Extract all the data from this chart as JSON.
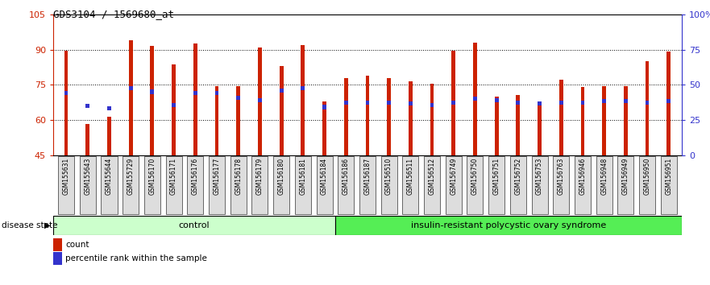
{
  "title": "GDS3104 / 1569680_at",
  "samples": [
    "GSM155631",
    "GSM155643",
    "GSM155644",
    "GSM155729",
    "GSM156170",
    "GSM156171",
    "GSM156176",
    "GSM156177",
    "GSM156178",
    "GSM156179",
    "GSM156180",
    "GSM156181",
    "GSM156184",
    "GSM156186",
    "GSM156187",
    "GSM156510",
    "GSM156511",
    "GSM156512",
    "GSM156749",
    "GSM156750",
    "GSM156751",
    "GSM156752",
    "GSM156753",
    "GSM156763",
    "GSM156946",
    "GSM156948",
    "GSM156949",
    "GSM156950",
    "GSM156951"
  ],
  "count_values": [
    89.5,
    58.5,
    61.5,
    94.0,
    91.5,
    83.5,
    92.5,
    74.5,
    74.5,
    91.0,
    83.0,
    92.0,
    68.0,
    78.0,
    79.0,
    78.0,
    76.5,
    75.5,
    89.5,
    93.0,
    70.0,
    70.5,
    67.0,
    77.0,
    74.0,
    74.5,
    74.5,
    85.0,
    89.0
  ],
  "percentile_values": [
    71.5,
    66.0,
    65.0,
    73.5,
    72.0,
    66.5,
    71.5,
    71.5,
    69.5,
    68.5,
    72.5,
    73.5,
    65.5,
    67.5,
    67.5,
    67.5,
    67.0,
    66.5,
    67.5,
    69.0,
    68.5,
    67.5,
    67.0,
    67.5,
    67.5,
    68.0,
    68.0,
    67.5,
    68.0
  ],
  "group_labels": [
    "control",
    "insulin-resistant polycystic ovary syndrome"
  ],
  "group_split": 13,
  "ylim": [
    45,
    105
  ],
  "yticks": [
    45,
    60,
    75,
    90,
    105
  ],
  "right_yticks": [
    0,
    25,
    50,
    75,
    100
  ],
  "right_ytick_labels": [
    "0",
    "25",
    "50",
    "75",
    "100%"
  ],
  "bar_color": "#CC2200",
  "percentile_color": "#3333CC",
  "control_bg": "#CCFFCC",
  "irpcos_bg": "#55EE55",
  "tick_bg": "#DDDDDD"
}
